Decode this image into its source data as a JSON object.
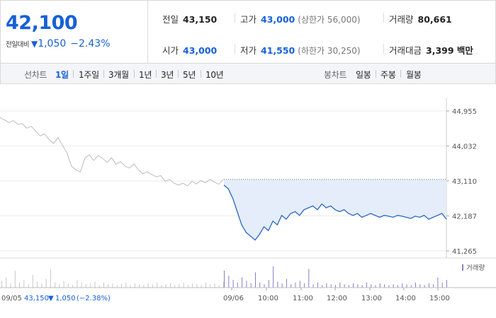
{
  "quote": {
    "current_price": "42,100",
    "change_label": "전일대비",
    "change_arrow": "▼",
    "change_value": "1,050",
    "change_pct": "−2.43%"
  },
  "stats": {
    "prev_close": {
      "label": "전일",
      "value": "43,150"
    },
    "high": {
      "label": "고가",
      "value": "43,000",
      "sub": "(상한가 56,000)"
    },
    "volume": {
      "label": "거래량",
      "value": "80,661"
    },
    "open": {
      "label": "시가",
      "value": "43,000"
    },
    "low": {
      "label": "저가",
      "value": "41,550",
      "sub": "(하한가 30,250)"
    },
    "trade_value": {
      "label": "거래대금",
      "value": "3,399 백만"
    }
  },
  "period_bar": {
    "line_chart_label": "선차트",
    "periods": [
      "1일",
      "1주일",
      "3개월",
      "1년",
      "3년",
      "5년",
      "10년"
    ],
    "active_period": "1일",
    "candle_chart_label": "봉차트",
    "candle_periods": [
      "일봉",
      "주봉",
      "월봉"
    ]
  },
  "chart_data": {
    "type": "line",
    "y_ticks": [
      "44,955",
      "44,032",
      "43,110",
      "42,187",
      "41,265"
    ],
    "ylim": [
      41265,
      44955
    ],
    "x_ticks": [
      "09/05",
      "09/06",
      "10:00",
      "11:00",
      "12:00",
      "13:00",
      "14:00",
      "15:00"
    ],
    "volume_label": "거래량",
    "prev_day_caption": {
      "date": "09/05",
      "price": "43,150",
      "arrow": "▼",
      "change": "1,050",
      "pct": "(−2.38%)"
    },
    "reference_price": 43150,
    "series": [
      {
        "values_prev_day": [
          44780,
          44720,
          44650,
          44700,
          44600,
          44620,
          44500,
          44550,
          44420,
          44300,
          44350,
          44200,
          44100,
          44250,
          44050,
          43850,
          43500,
          43400,
          43350,
          43700,
          43800,
          43650,
          43780,
          43700,
          43600,
          43720,
          43550,
          43620,
          43500,
          43450,
          43560,
          43400,
          43300,
          43350,
          43280,
          43220,
          43250,
          43100,
          43150,
          43050,
          43000,
          43050,
          42980,
          43100,
          43030,
          43120,
          43060,
          43150,
          43080,
          43020,
          43150
        ],
        "values_today": [
          43000,
          42900,
          42650,
          42300,
          41950,
          41750,
          41650,
          41550,
          41700,
          41900,
          41800,
          42050,
          41950,
          42200,
          42100,
          42250,
          42300,
          42200,
          42350,
          42400,
          42450,
          42350,
          42500,
          42400,
          42450,
          42350,
          42300,
          42350,
          42250,
          42200,
          42250,
          42150,
          42200,
          42250,
          42200,
          42150,
          42200,
          42180,
          42150,
          42200,
          42180,
          42150,
          42120,
          42180,
          42150,
          42200,
          42100,
          42150,
          42200,
          42250,
          42100
        ]
      }
    ],
    "volume_prev_day": [
      8,
      12,
      5,
      20,
      6,
      9,
      4,
      15,
      7,
      5,
      10,
      22,
      6,
      4,
      8,
      5,
      3,
      9,
      6,
      4,
      5,
      7,
      3,
      6,
      4,
      5,
      3,
      4,
      6,
      3,
      5,
      4,
      3,
      5,
      4,
      6,
      3,
      4,
      5,
      3,
      4,
      6,
      3,
      5,
      4,
      3,
      6,
      4,
      5,
      3,
      7
    ],
    "volume_today": [
      20,
      14,
      9,
      6,
      12,
      8,
      5,
      18,
      6,
      4,
      9,
      25,
      7,
      5,
      10,
      4,
      6,
      8,
      5,
      22,
      4,
      6,
      3,
      5,
      4,
      3,
      6,
      4,
      3,
      5,
      4,
      3,
      6,
      4,
      3,
      5,
      4,
      3,
      4,
      3,
      5,
      4,
      3,
      6,
      4,
      3,
      5,
      4,
      12,
      6,
      9
    ]
  }
}
